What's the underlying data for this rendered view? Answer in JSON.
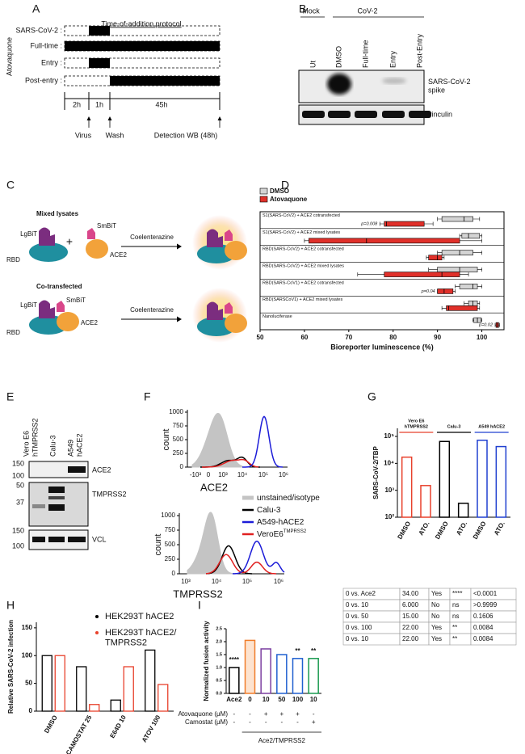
{
  "A": {
    "letter": "A",
    "title": "Time-of-addition protocol",
    "drug": "Atovaquone",
    "rows": [
      "SARS-CoV-2 :",
      "Full-time :",
      "Entry :",
      "Post-entry :"
    ],
    "durations": [
      "2h",
      "1h",
      "45h"
    ],
    "events": [
      "Virus",
      "Wash",
      "Detection WB (48h)"
    ]
  },
  "B": {
    "letter": "B",
    "groups": [
      "Mock",
      "CoV-2"
    ],
    "lanes": [
      "Ut",
      "DMSO",
      "Full-time",
      "Entry",
      "Post-Entry"
    ],
    "bands": [
      "SARS-CoV-2 spike",
      "vinculin"
    ]
  },
  "C": {
    "letter": "C",
    "reagent": "Coelenterazine",
    "mixed": {
      "title": "Mixed lysates",
      "lgbit": "LgBiT",
      "smbit": "SmBiT",
      "ace2": "ACE2",
      "rbd": "RBD",
      "plus": "+"
    },
    "cotransfected": {
      "title": "Co-transfected",
      "lgbit": "LgBiT",
      "smbit": "SmBiT",
      "ace2": "ACE2",
      "rbd": "RBD"
    }
  },
  "D": {
    "letter": "D",
    "chart": {
      "type": "boxplot",
      "xlabel": "Bioreporter luminescence (%)",
      "categories": [
        "S1(SARS-CoV2) + ACE2 cotransfected",
        "S1(SARS-CoV2) + ACE2 mixed lysates",
        "RBD(SARS-CoV2) + ACE2 cotransfected",
        "RBD(SARS-CoV2) + ACE2 mixed lysates",
        "RBD(SARS-CoV1) + ACE2 cotransfected",
        "RBD(SARSCoV1) + ACE2 mixed lysates",
        "Nanoluciferase"
      ],
      "series": [
        {
          "name": "DMSO",
          "color": "#d4d4d4",
          "boxes": [
            {
              "min": 90,
              "q1": 91,
              "median": 96,
              "q3": 98,
              "max": 99.5
            },
            {
              "min": 95,
              "q1": 95.5,
              "median": 97,
              "q3": 99.5,
              "max": 100
            },
            {
              "min": 90,
              "q1": 91,
              "median": 95,
              "q3": 98,
              "max": 100
            },
            {
              "min": 88,
              "q1": 90,
              "median": 95,
              "q3": 99,
              "max": 100
            },
            {
              "min": 94,
              "q1": 95,
              "median": 98,
              "q3": 99,
              "max": 100
            },
            {
              "min": 96,
              "q1": 97,
              "median": 98,
              "q3": 99,
              "max": 99.5
            },
            {
              "min": 98,
              "q1": 98.2,
              "median": 99,
              "q3": 99.8,
              "max": 100
            }
          ]
        },
        {
          "name": "Atovaquone",
          "color": "#e0302a",
          "boxes": [
            {
              "min": 77,
              "q1": 78,
              "median": 78.5,
              "q3": 87,
              "max": 89
            },
            {
              "min": 60,
              "q1": 61,
              "median": 74,
              "q3": 95,
              "max": 100
            },
            {
              "min": 87.5,
              "q1": 88,
              "median": 90,
              "q3": 91,
              "max": 91.5
            },
            {
              "min": 72,
              "q1": 78,
              "median": 91,
              "q3": 95,
              "max": 97
            },
            {
              "min": 90,
              "q1": 90,
              "median": 91.5,
              "q3": 93.5,
              "max": 94
            },
            {
              "min": 91,
              "q1": 92,
              "median": 92.5,
              "q3": 99,
              "max": 99.5
            },
            {
              "min": 103,
              "q1": 103.2,
              "median": 103.5,
              "q3": 103.8,
              "max": 104
            }
          ]
        }
      ],
      "annotations": [
        "p=0.008",
        null,
        null,
        null,
        "p=0.04",
        null,
        "p=0.02"
      ],
      "xlim": [
        50,
        105
      ],
      "xticks": [
        50,
        60,
        70,
        80,
        90,
        100
      ]
    }
  },
  "E": {
    "letter": "E",
    "lanes": [
      {
        "lines": [
          "Vero E6",
          "hTMPRSS2"
        ]
      },
      {
        "lines": [
          "Calu-3"
        ]
      },
      {
        "lines": [
          "A549",
          "hACE2"
        ]
      }
    ],
    "blots": [
      {
        "label": "ACE2",
        "markers": [
          150,
          100
        ]
      },
      {
        "label": "TMPRSS2",
        "markers": [
          50,
          37
        ]
      },
      {
        "label": "VCL",
        "markers": [
          150,
          100
        ]
      }
    ]
  },
  "F": {
    "letter": "F",
    "top": {
      "ylabel": "count",
      "ylim": [
        0,
        1000
      ],
      "yticks": [
        0,
        250,
        500,
        750,
        1000
      ],
      "xtick_labels": [
        "-10³",
        "0",
        "10³",
        "10⁴",
        "10⁵",
        "10⁶"
      ],
      "xlabel": "ACE2"
    },
    "bottom": {
      "ylabel": "count",
      "ylim": [
        0,
        1000
      ],
      "yticks": [
        0,
        250,
        500,
        750,
        1000
      ],
      "xtick_labels": [
        "10³",
        "10⁴",
        "10⁵",
        "10⁶"
      ],
      "xlabel": "TMPRSS2"
    },
    "legend": [
      {
        "name": "unstained/isotype",
        "color": "#c4c4c4"
      },
      {
        "name": "Calu-3",
        "color": "#000000"
      },
      {
        "name": "A549-hACE2",
        "color": "#1c1cd8"
      },
      {
        "name": "VeroE6",
        "sup": "TMPRSS2",
        "color": "#e02020"
      }
    ]
  },
  "G": {
    "letter": "G",
    "chart": {
      "type": "bar",
      "ylabel": "SARS-CoV-2/TBP",
      "log_scale": true,
      "categories": [
        "DMSO",
        "ATO.",
        "DMSO",
        "ATO.",
        "DMSO",
        "ATO."
      ],
      "values": [
        17000,
        1500,
        65000,
        330,
        72000,
        42000
      ],
      "groups": [
        {
          "lines": [
            "Vero E6",
            "hTMPRSS2"
          ],
          "color": "#e8412c"
        },
        {
          "lines": [
            "Calu-3"
          ],
          "color": "#000000"
        },
        {
          "lines": [
            "A549 hACE2"
          ],
          "color": "#2040d0"
        }
      ],
      "ylim": [
        100,
        200000
      ],
      "yticks": [
        {
          "value": 100,
          "label": "10²"
        },
        {
          "value": 1000,
          "label": "10³"
        },
        {
          "value": 10000,
          "label": "10⁴"
        },
        {
          "value": 100000,
          "label": "10⁵"
        }
      ]
    }
  },
  "H": {
    "letter": "H",
    "chart": {
      "type": "bar",
      "ylabel": "Relative SARS-CoV-2 infection",
      "categories": [
        "DMSO",
        "CAMOSTAT 25",
        "E64D 10",
        "ATOV 100"
      ],
      "series": [
        {
          "name": "HEK293T hACE2",
          "color": "#000000",
          "values": [
            100,
            80,
            20,
            110
          ]
        },
        {
          "name": "HEK293T hACE2/TMPRSS2",
          "color": "#e8412c",
          "values": [
            100,
            12,
            80,
            48
          ]
        }
      ],
      "ylim": [
        0,
        160
      ],
      "yticks": [
        0,
        50,
        100,
        150
      ]
    }
  },
  "I": {
    "letter": "I",
    "chart": {
      "type": "bar",
      "ylabel": "Normalized fusion activity",
      "categories": [
        "Ace2",
        "0",
        "10",
        "50",
        "100",
        "10"
      ],
      "values": [
        1.0,
        2.05,
        1.72,
        1.5,
        1.35,
        1.35
      ],
      "colors": [
        "#000000",
        "#f07d2a",
        "#7b3fa0",
        "#2060d0",
        "#2060d0",
        "#1a9a50"
      ],
      "stars": [
        "****",
        null,
        null,
        null,
        "**",
        "**"
      ],
      "ylim": [
        0,
        2.5
      ],
      "yticks": [
        {
          "value": 0,
          "label": "0.0"
        },
        0.5,
        {
          "value": 1,
          "label": "1.0"
        },
        1.5,
        {
          "value": 2,
          "label": "2.0"
        },
        2.5
      ],
      "treatments": [
        {
          "label": "Atovaquone (μM)",
          "signs": [
            "-",
            "-",
            "+",
            "+",
            "+",
            "-"
          ]
        },
        {
          "label": "Camostat (μM)",
          "signs": [
            "-",
            "-",
            "-",
            "-",
            "-",
            "+"
          ]
        }
      ],
      "group_label": "Ace2/TMPRSS2"
    },
    "table": {
      "rows": [
        [
          "0 vs. Ace2",
          "34.00",
          "Yes",
          "****",
          "<0.0001"
        ],
        [
          "0 vs. 10",
          "6.000",
          "No",
          "ns",
          ">0.9999"
        ],
        [
          "0 vs. 50",
          "15.00",
          "No",
          "ns",
          "0.1606"
        ],
        [
          "0 vs. 100",
          "22.00",
          "Yes",
          "**",
          "0.0084"
        ],
        [
          "0 vs. 10",
          "22.00",
          "Yes",
          "**",
          "0.0084"
        ]
      ]
    }
  }
}
